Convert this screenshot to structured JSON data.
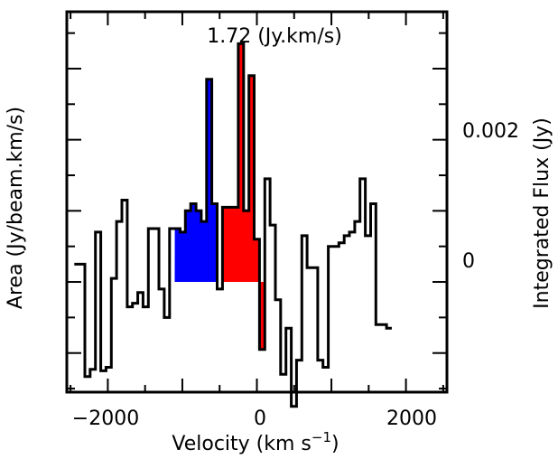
{
  "chart_data": {
    "type": "line",
    "style": "step",
    "annotation": "1.72 (Jy.km/s)",
    "xlabel": "Velocity (km s",
    "xlabel_sup": "−1",
    "xlabel_close": ")",
    "ylabel_left": "Area (Jy/beam.km/s)",
    "ylabel_right": "Integrated Flux (Jy)",
    "xlim": [
      -2550,
      2550
    ],
    "ylim": [
      -0.00155,
      0.0038
    ],
    "x_ticks": [
      -2000,
      0,
      2000
    ],
    "x_tick_labels": [
      "−2000",
      "0",
      "2000"
    ],
    "y_ticks": [
      0,
      0.002
    ],
    "y_tick_labels": [
      "0",
      "0.002"
    ],
    "grid": false,
    "channel_width": 71,
    "x_start": -2450,
    "values": [
      0.00025,
      0.00025,
      -0.00133,
      -0.00123,
      0.0007,
      -0.00125,
      -0.0012,
      5e-05,
      0.00085,
      0.00115,
      -0.00035,
      -0.0003,
      -0.00015,
      -0.00035,
      0.00075,
      0.00075,
      -0.0001,
      -0.0005,
      0.00075,
      0.00075,
      0.0007,
      0.001,
      0.0011,
      0.001,
      0.00085,
      0.00285,
      0.0011,
      -0.0001,
      0.00105,
      0.00105,
      0.00105,
      0.00335,
      0.001,
      0.0029,
      0.0006,
      -0.00095,
      0.00145,
      0.0008,
      -0.00025,
      -0.0013,
      -0.00065,
      -0.00175,
      -0.0011,
      0.00065,
      0.0002,
      0.0002,
      -0.0011,
      -0.0012,
      0.0005,
      0.0005,
      0.00055,
      0.00065,
      0.0007,
      0.00085,
      0.00145,
      0.00065,
      0.0011,
      -0.0006,
      -0.0006,
      -0.00065
    ],
    "highlights": [
      {
        "name": "blue",
        "color": "#0000ff",
        "from": -1102,
        "to": -534
      },
      {
        "name": "red",
        "color": "#ff0000",
        "from": -463,
        "to": 105
      }
    ]
  }
}
